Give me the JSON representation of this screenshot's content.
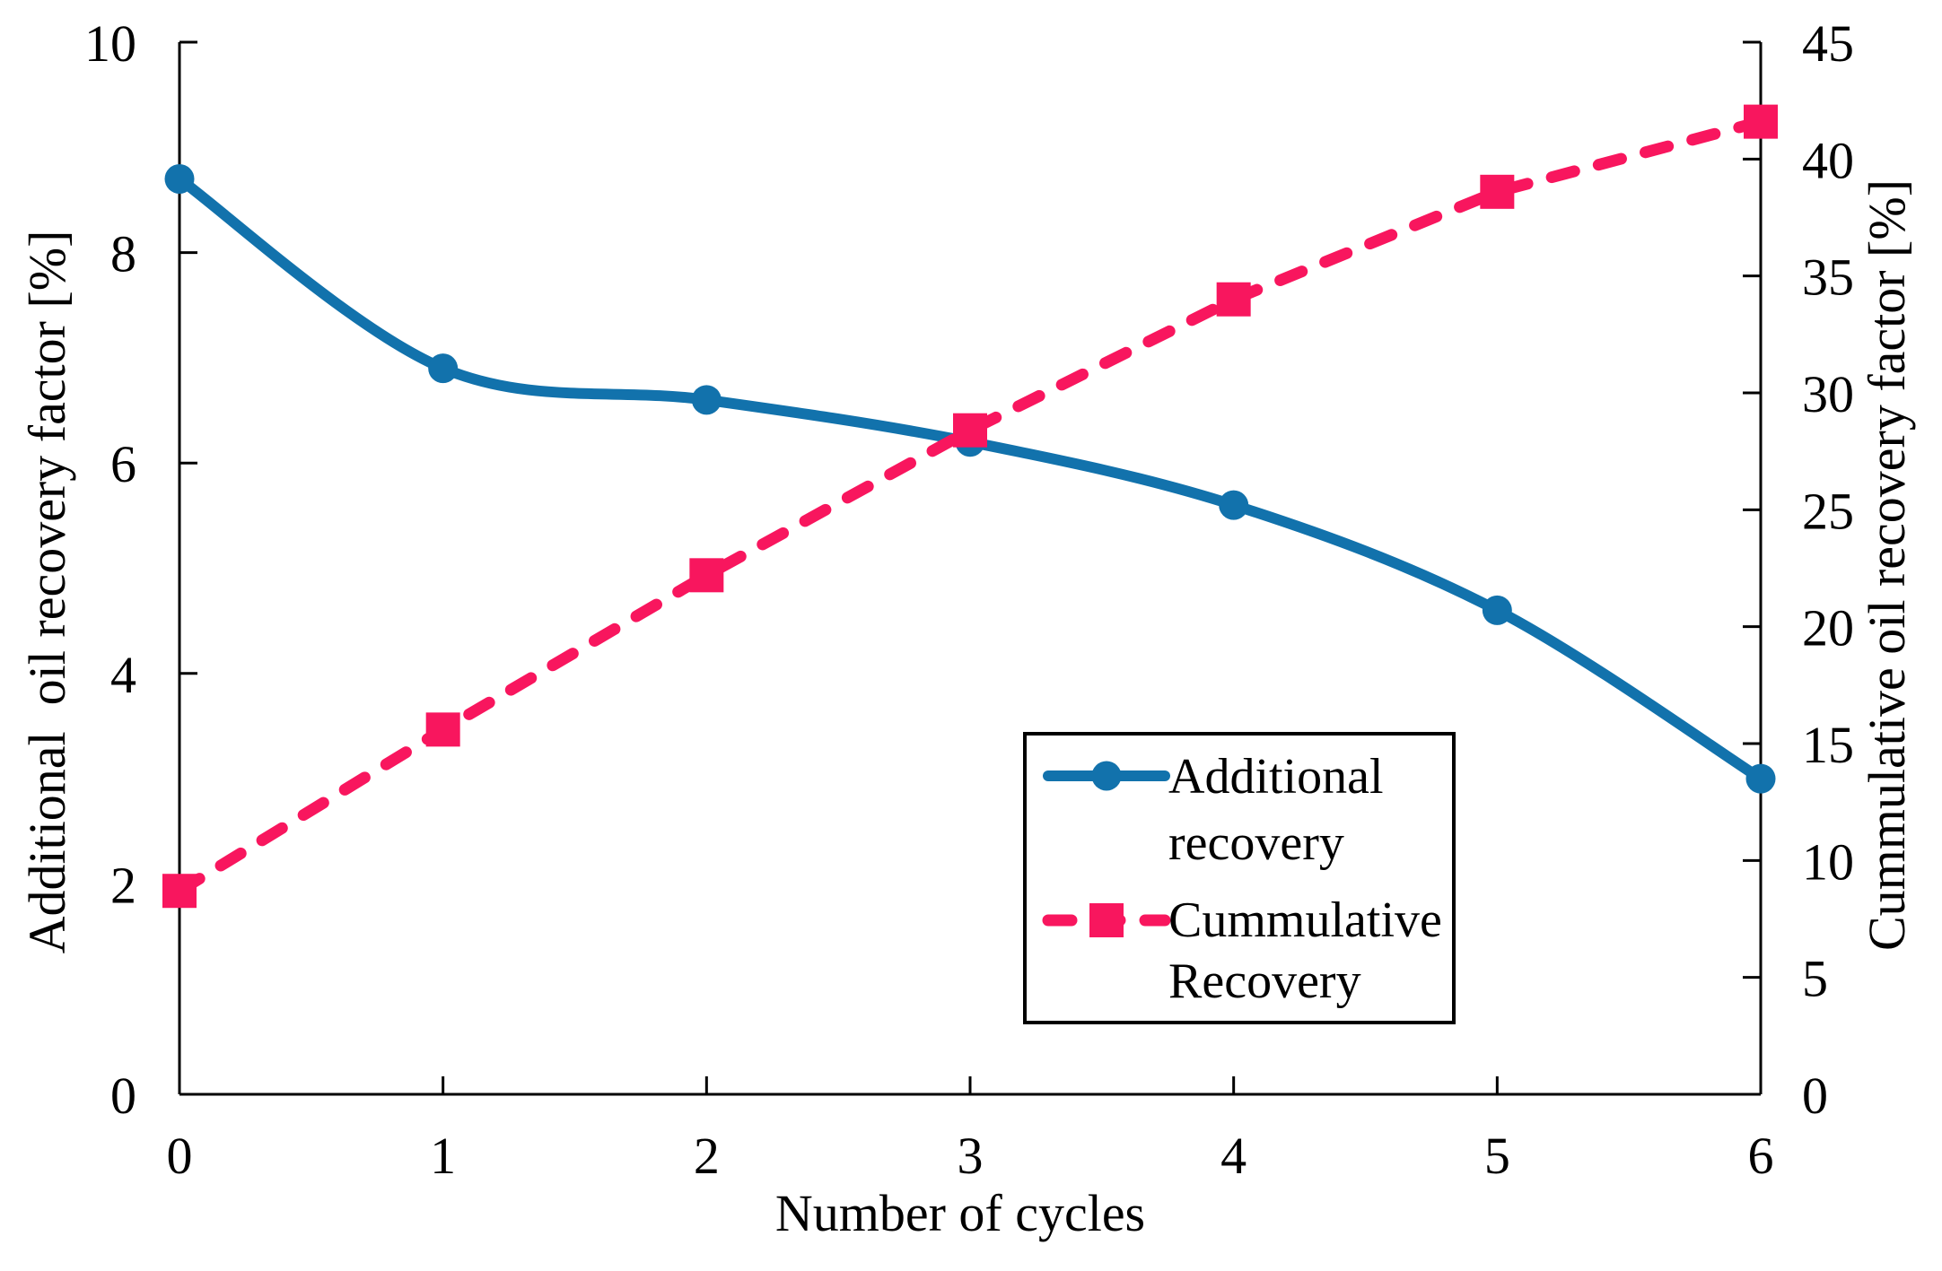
{
  "chart_data": {
    "type": "line",
    "x": [
      0,
      1,
      2,
      3,
      4,
      5,
      6
    ],
    "series": [
      {
        "name": "Additional recovery",
        "axis": "left",
        "color": "#1272AC",
        "line_style": "solid",
        "smooth": true,
        "marker": "circle",
        "values": [
          8.7,
          6.9,
          6.6,
          6.2,
          5.6,
          4.6,
          3.0
        ]
      },
      {
        "name": "Cummulative Recovery",
        "axis": "right",
        "color": "#F8165E",
        "line_style": "dashed",
        "smooth": false,
        "marker": "square",
        "values": [
          8.7,
          15.6,
          22.2,
          28.4,
          34.0,
          38.6,
          41.6
        ]
      }
    ],
    "x_axis": {
      "label": "Number of cycles",
      "min": 0,
      "max": 6,
      "ticks": [
        0,
        1,
        2,
        3,
        4,
        5,
        6
      ]
    },
    "left_axis": {
      "label": "Additional  oil recovery factor [%]",
      "min": 0,
      "max": 10,
      "ticks": [
        0,
        2,
        4,
        6,
        8,
        10
      ]
    },
    "right_axis": {
      "label": "Cummulative oil recovery factor [%]",
      "min": 0,
      "max": 45,
      "ticks": [
        0,
        5,
        10,
        15,
        20,
        25,
        30,
        35,
        40,
        45
      ]
    },
    "grid": false,
    "legend": {
      "position": "inside-bottom-right",
      "items": [
        {
          "lines": [
            "Additional",
            "recovery"
          ],
          "series": 0
        },
        {
          "lines": [
            "Cummulative",
            "Recovery"
          ],
          "series": 1
        }
      ]
    }
  }
}
